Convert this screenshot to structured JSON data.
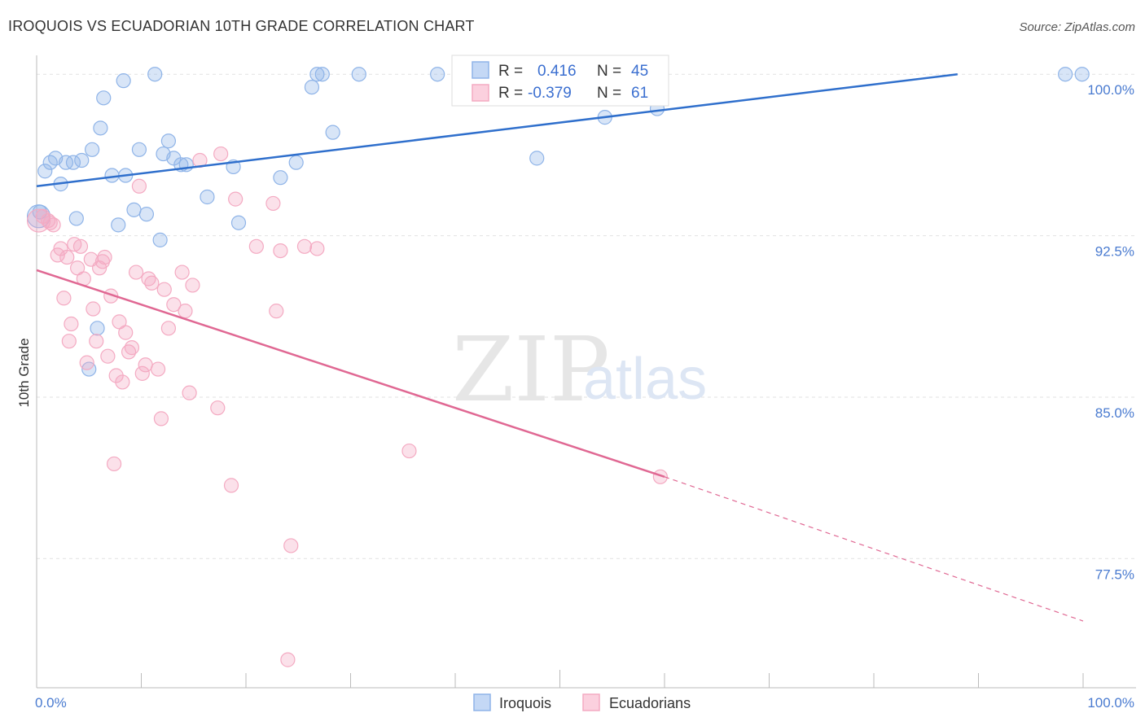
{
  "title": "IROQUOIS VS ECUADORIAN 10TH GRADE CORRELATION CHART",
  "source": "Source: ZipAtlas.com",
  "watermark": {
    "part1": "ZIP",
    "part2": "atlas"
  },
  "chart_data": {
    "type": "scatter",
    "title": "IROQUOIS VS ECUADORIAN 10TH GRADE CORRELATION CHART",
    "xlabel": "",
    "ylabel": "10th Grade",
    "xlim": [
      0,
      100
    ],
    "ylim": [
      71.5,
      100.5
    ],
    "x_tick_labels": [
      "0.0%",
      "100.0%"
    ],
    "y_ticks": [
      77.5,
      85.0,
      92.5,
      100.0
    ],
    "y_tick_labels": [
      "77.5%",
      "85.0%",
      "92.5%",
      "100.0%"
    ],
    "grid": true,
    "legend_position": "bottom-center",
    "series": [
      {
        "name": "Iroquois",
        "color": "#8fb4e8",
        "line_color": "#2f6fcc",
        "R": "0.416",
        "N": "45",
        "trend": {
          "x0": 0,
          "y0": 94.8,
          "x1": 88,
          "y1": 100.0,
          "dashed_to": null
        },
        "points": [
          [
            0.3,
            93.6
          ],
          [
            0.8,
            95.5
          ],
          [
            1.3,
            95.9
          ],
          [
            1.8,
            96.1
          ],
          [
            2.3,
            94.9
          ],
          [
            2.8,
            95.9
          ],
          [
            3.5,
            95.9
          ],
          [
            3.8,
            93.3
          ],
          [
            4.3,
            96.0
          ],
          [
            5.0,
            86.3
          ],
          [
            5.3,
            96.5
          ],
          [
            5.8,
            88.2
          ],
          [
            6.1,
            97.5
          ],
          [
            6.4,
            98.9
          ],
          [
            7.2,
            95.3
          ],
          [
            7.8,
            93.0
          ],
          [
            8.3,
            99.7
          ],
          [
            8.5,
            95.3
          ],
          [
            9.3,
            93.7
          ],
          [
            9.8,
            96.5
          ],
          [
            10.5,
            93.5
          ],
          [
            11.3,
            100.0
          ],
          [
            11.8,
            92.3
          ],
          [
            12.1,
            96.3
          ],
          [
            12.6,
            96.9
          ],
          [
            13.1,
            96.1
          ],
          [
            13.8,
            95.8
          ],
          [
            14.3,
            95.8
          ],
          [
            16.3,
            94.3
          ],
          [
            18.8,
            95.7
          ],
          [
            19.3,
            93.1
          ],
          [
            23.3,
            95.2
          ],
          [
            24.8,
            95.9
          ],
          [
            26.3,
            99.4
          ],
          [
            26.8,
            100.0
          ],
          [
            27.3,
            100.0
          ],
          [
            28.3,
            97.3
          ],
          [
            30.8,
            100.0
          ],
          [
            38.3,
            100.0
          ],
          [
            47.8,
            96.1
          ],
          [
            54.3,
            98.0
          ],
          [
            59.3,
            98.4
          ],
          [
            98.3,
            100.0
          ],
          [
            99.9,
            100.0
          ],
          [
            0.2,
            93.4
          ]
        ]
      },
      {
        "name": "Ecuadorians",
        "color": "#f4aac2",
        "line_color": "#e06893",
        "R": "-0.379",
        "N": "61",
        "trend": {
          "x0": 0,
          "y0": 90.9,
          "x1": 60,
          "y1": 81.3,
          "dashed_to": {
            "x": 100,
            "y": 74.6
          }
        },
        "points": [
          [
            0.2,
            93.2
          ],
          [
            0.6,
            93.4
          ],
          [
            1.1,
            93.2
          ],
          [
            1.6,
            93.0
          ],
          [
            2.0,
            91.6
          ],
          [
            2.3,
            91.9
          ],
          [
            2.6,
            89.6
          ],
          [
            2.9,
            91.5
          ],
          [
            3.1,
            87.6
          ],
          [
            3.3,
            88.4
          ],
          [
            3.6,
            92.1
          ],
          [
            3.9,
            91.0
          ],
          [
            4.2,
            92.0
          ],
          [
            4.5,
            90.5
          ],
          [
            4.8,
            86.6
          ],
          [
            5.2,
            91.4
          ],
          [
            5.4,
            89.1
          ],
          [
            5.7,
            87.6
          ],
          [
            6.0,
            91.0
          ],
          [
            6.3,
            91.3
          ],
          [
            6.5,
            91.5
          ],
          [
            6.8,
            86.9
          ],
          [
            7.1,
            89.7
          ],
          [
            7.4,
            81.9
          ],
          [
            7.6,
            86.0
          ],
          [
            7.9,
            88.5
          ],
          [
            8.2,
            85.7
          ],
          [
            8.5,
            88.0
          ],
          [
            8.8,
            87.1
          ],
          [
            9.1,
            87.3
          ],
          [
            9.5,
            90.8
          ],
          [
            9.8,
            94.8
          ],
          [
            10.1,
            86.1
          ],
          [
            10.4,
            86.5
          ],
          [
            10.7,
            90.5
          ],
          [
            11.0,
            90.3
          ],
          [
            11.6,
            86.3
          ],
          [
            11.9,
            84.0
          ],
          [
            12.2,
            90.0
          ],
          [
            12.6,
            88.2
          ],
          [
            13.1,
            89.3
          ],
          [
            13.9,
            90.8
          ],
          [
            14.2,
            89.0
          ],
          [
            14.6,
            85.2
          ],
          [
            14.9,
            90.2
          ],
          [
            15.6,
            96.0
          ],
          [
            17.3,
            84.5
          ],
          [
            17.6,
            96.3
          ],
          [
            18.6,
            80.9
          ],
          [
            19.0,
            94.2
          ],
          [
            21.0,
            92.0
          ],
          [
            22.6,
            94.0
          ],
          [
            22.9,
            89.0
          ],
          [
            23.3,
            91.8
          ],
          [
            24.0,
            72.8
          ],
          [
            24.3,
            78.1
          ],
          [
            25.6,
            92.0
          ],
          [
            26.8,
            91.9
          ],
          [
            35.6,
            82.5
          ],
          [
            59.6,
            81.3
          ],
          [
            1.3,
            93.1
          ]
        ]
      }
    ]
  }
}
